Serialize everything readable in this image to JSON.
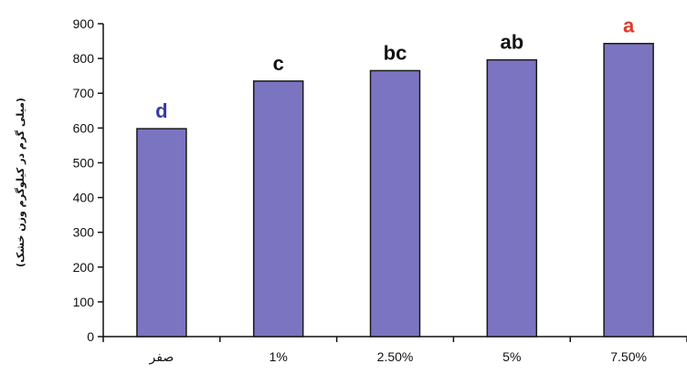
{
  "chart_data": {
    "type": "bar",
    "categories": [
      "صفر",
      "1%",
      "2.50%",
      "5%",
      "7.50%"
    ],
    "values": [
      598,
      735,
      765,
      796,
      843
    ],
    "significance_labels": [
      "d",
      "c",
      "bc",
      "ab",
      "a"
    ],
    "label_colors": [
      "#3a3aa8",
      "#111111",
      "#111111",
      "#111111",
      "#e03a2a"
    ],
    "bar_color": "#7b74c0",
    "bar_stroke": "#1a1a1a",
    "ylabel": "(میلی گرم در کیلوگرم وزن خشک)",
    "xlabel": "",
    "title": "",
    "ylim": [
      0,
      900
    ],
    "yticks": [
      0,
      100,
      200,
      300,
      400,
      500,
      600,
      700,
      800,
      900
    ],
    "grid": false
  }
}
